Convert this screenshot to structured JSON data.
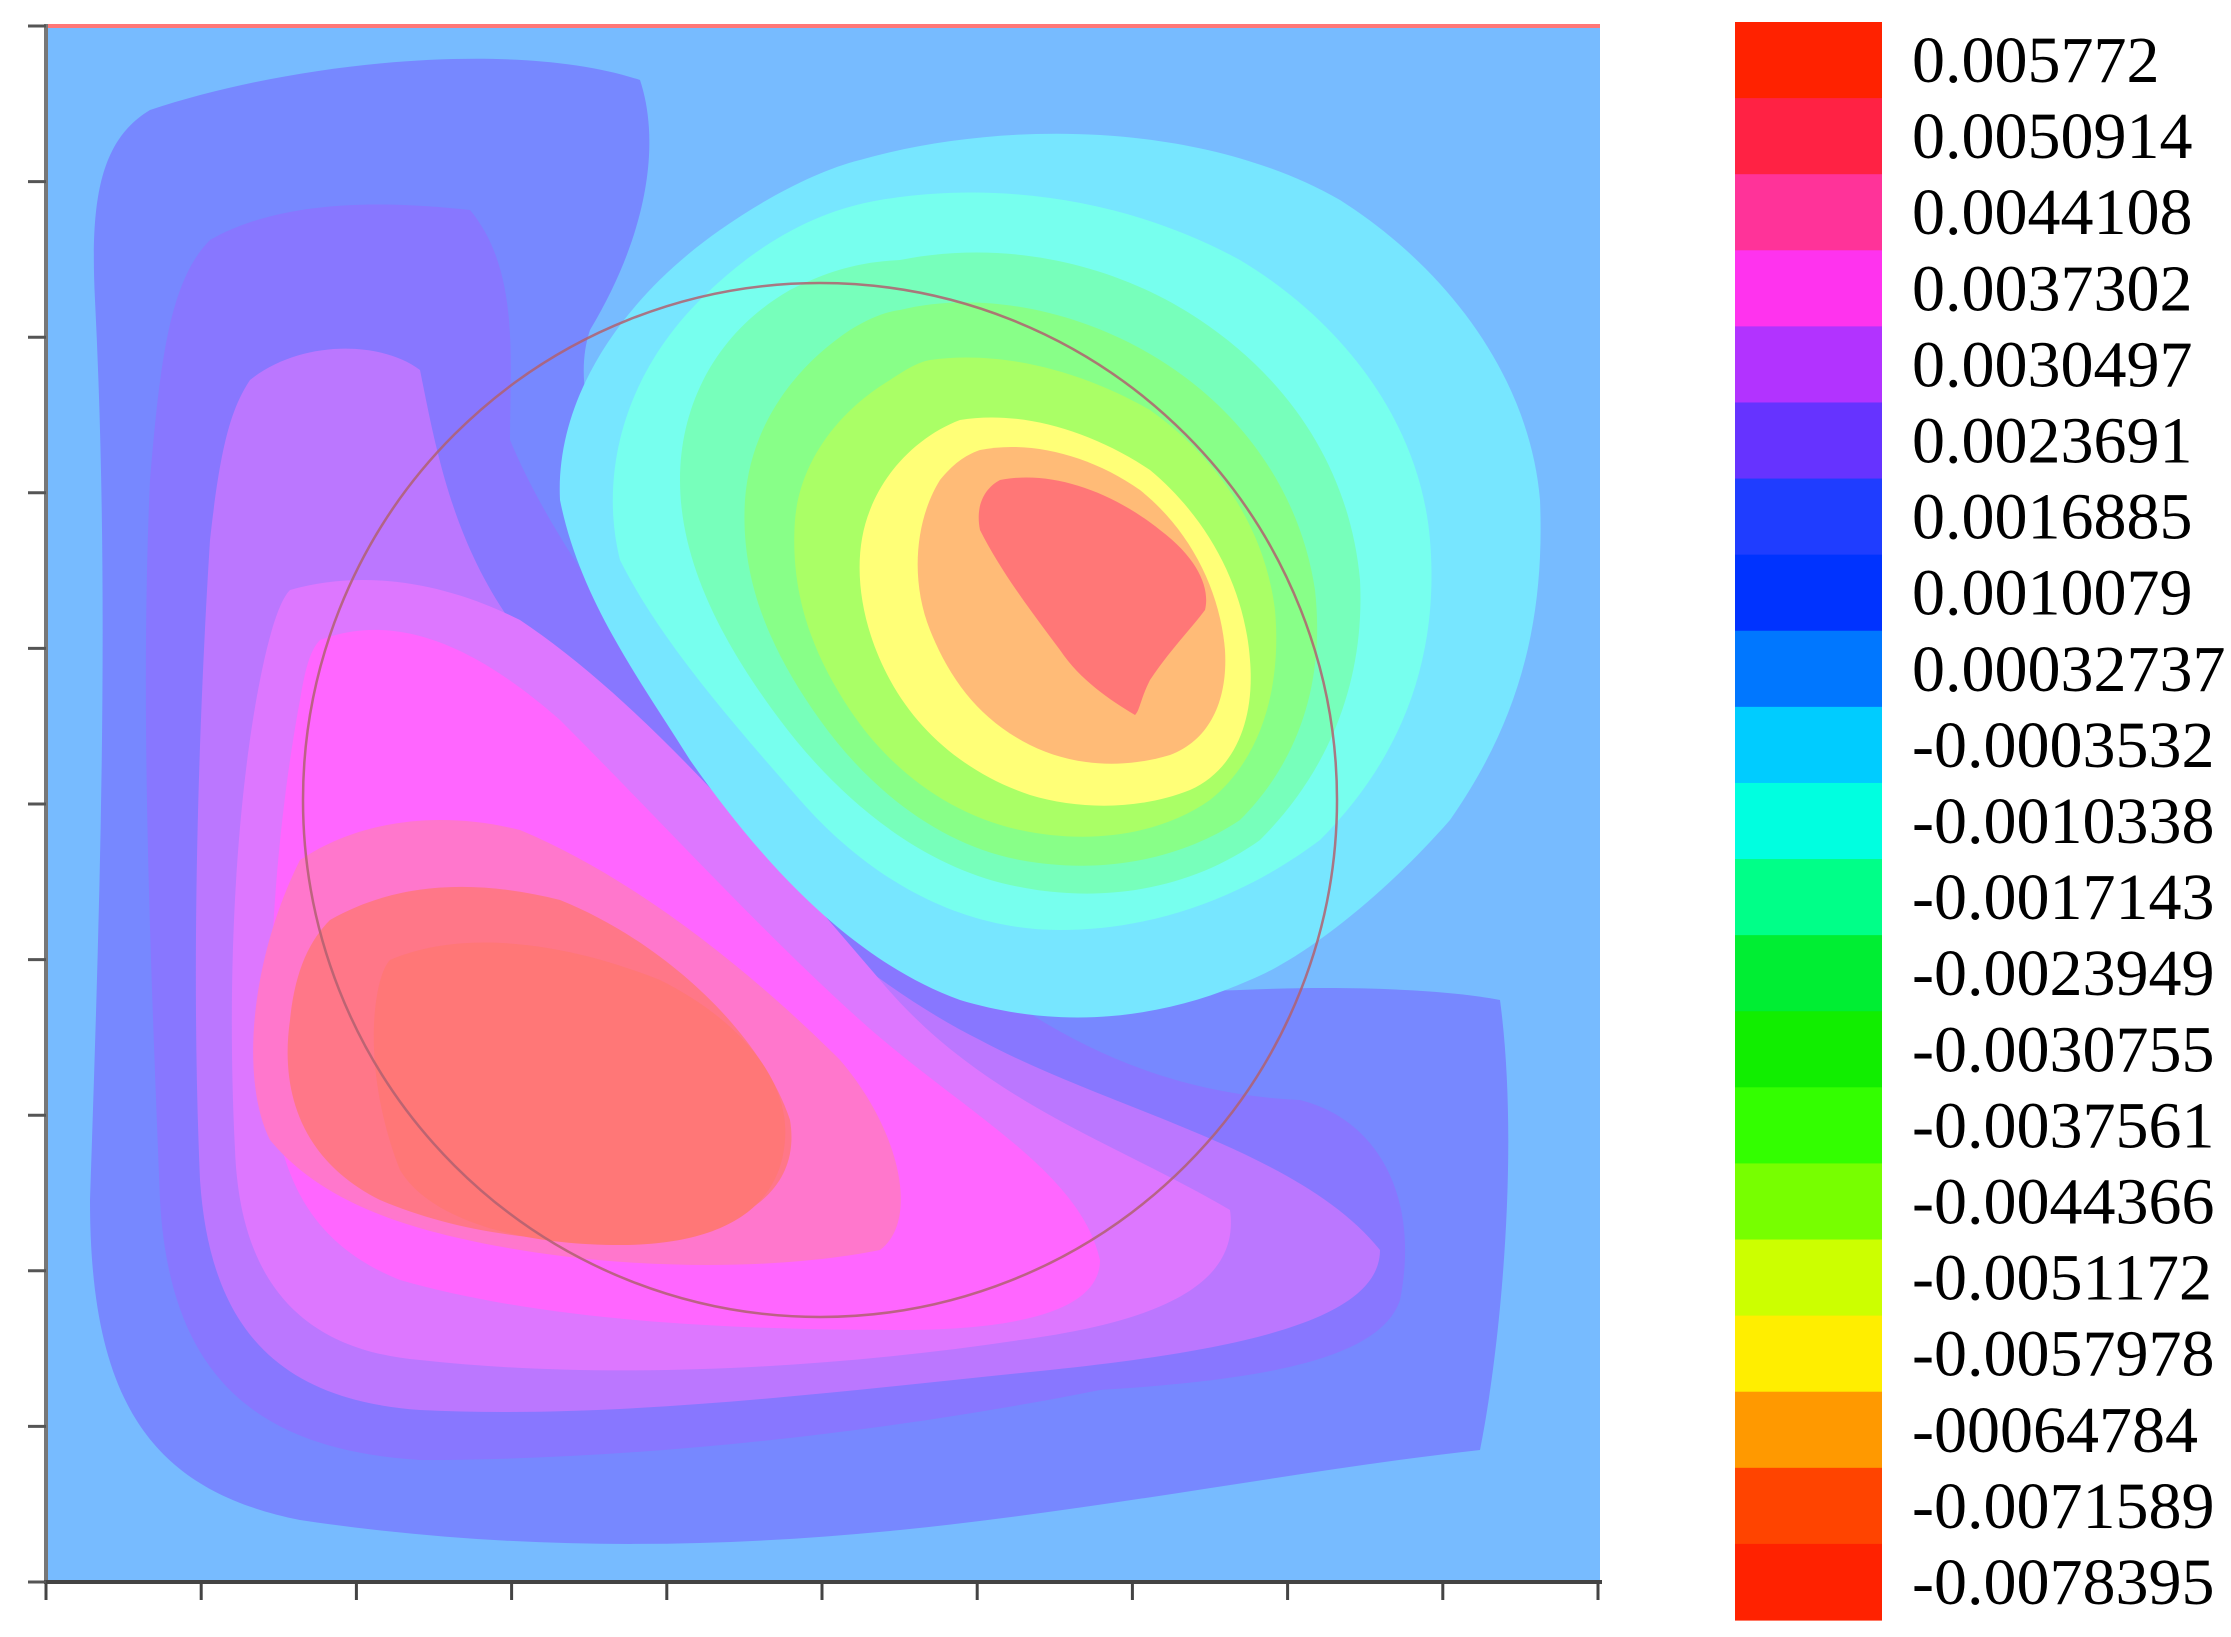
{
  "chart_data": {
    "type": "heatmap",
    "title": "",
    "xlabel": "",
    "ylabel": "",
    "grid": false,
    "legend_position": "right",
    "x_tick_count": 11,
    "y_tick_count": 11,
    "colorbar": [
      {
        "label": "0.005772",
        "color": "#ff2200"
      },
      {
        "label": "0.0050914",
        "color": "#ff2244"
      },
      {
        "label": "0.0044108",
        "color": "#ff3399"
      },
      {
        "label": "0.0037302",
        "color": "#ff33ee"
      },
      {
        "label": "0.0030497",
        "color": "#b233ff"
      },
      {
        "label": "0.0023691",
        "color": "#6633ff"
      },
      {
        "label": "0.0016885",
        "color": "#1f3dff"
      },
      {
        "label": "0.0010079",
        "color": "#0033ff"
      },
      {
        "label": "0.00032737",
        "color": "#0077ff"
      },
      {
        "label": "-0.0003532",
        "color": "#00ccff"
      },
      {
        "label": "-0.0010338",
        "color": "#00ffe0"
      },
      {
        "label": "-0.0017143",
        "color": "#00ff88"
      },
      {
        "label": "-0.0023949",
        "color": "#00ee33"
      },
      {
        "label": "-0.0030755",
        "color": "#11ee00"
      },
      {
        "label": "-0.0037561",
        "color": "#33ff00"
      },
      {
        "label": "-0.0044366",
        "color": "#77ff00"
      },
      {
        "label": "-0.0051172",
        "color": "#ccff00"
      },
      {
        "label": "-0.0057978",
        "color": "#ffee00"
      },
      {
        "label": "-00064784",
        "color": "#ff9900"
      },
      {
        "label": "-0.0071589",
        "color": "#ff4400"
      },
      {
        "label": "-0.0078395",
        "color": "#ff2200"
      }
    ],
    "field_colors": {
      "background": "#77bbff",
      "blue_violet": "#7788ff",
      "violet": "#8877ff",
      "purple": "#bb77ff",
      "light_magenta": "#dd77ff",
      "magenta": "#ff66ff",
      "pink": "#ff77cc",
      "salmon": "#ff7788",
      "coral": "#ff7777",
      "light_cyan": "#77e6ff",
      "aqua": "#77ffee",
      "mint": "#77ffbb",
      "light_green": "#88ff88",
      "lime_green": "#aaff66",
      "light_yellow": "#ffff77",
      "peach": "#ffbb77",
      "red_core": "#ff7777",
      "circle_stroke": "#b06070",
      "top_edge": "#ff7777"
    }
  }
}
